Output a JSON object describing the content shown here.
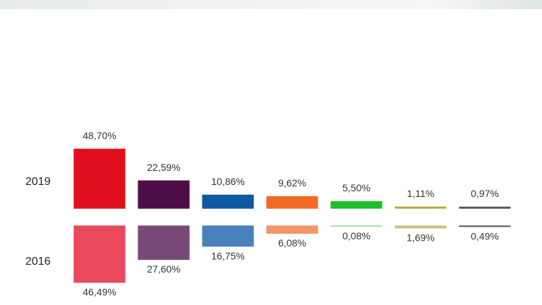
{
  "chart_data": {
    "type": "bar",
    "categories": [
      null,
      null,
      null,
      null,
      null,
      null,
      null
    ],
    "series": [
      {
        "name": "2019",
        "direction": "up",
        "values": [
          48.7,
          22.59,
          10.86,
          9.62,
          5.5,
          1.11,
          0.97
        ],
        "value_labels": [
          "48,70%",
          "22,59%",
          "10,86%",
          "9,62%",
          "5,50%",
          "1,11%",
          "0,97%"
        ],
        "colors": [
          "#e2101f",
          "#4d0e48",
          "#0d5aa1",
          "#f26a21",
          "#1cc02c",
          "#b3ad3b",
          "#555555"
        ]
      },
      {
        "name": "2016",
        "direction": "down",
        "values": [
          46.49,
          27.6,
          16.75,
          6.08,
          0.08,
          1.69,
          0.49
        ],
        "value_labels": [
          "46,49%",
          "27,60%",
          "16,75%",
          "6,08%",
          "0,08%",
          "1,69%",
          "0,49%"
        ],
        "colors": [
          "#e84a5b",
          "#7a4876",
          "#4a80bb",
          "#f3946a",
          "#79cf7b",
          "#c9c47b",
          "#555555"
        ]
      }
    ]
  }
}
